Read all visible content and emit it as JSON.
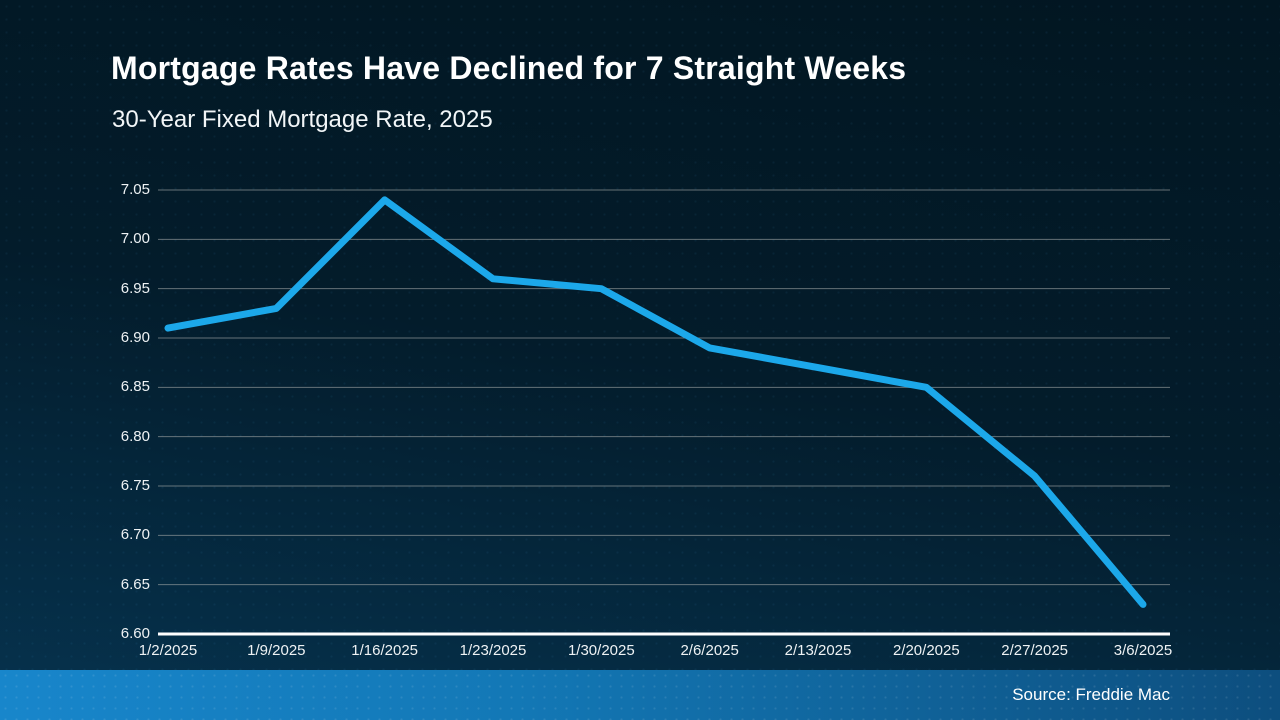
{
  "page": {
    "title": "Mortgage Rates Have Declined for 7 Straight Weeks",
    "subtitle": "30-Year Fixed Mortgage Rate, 2025",
    "source": "Source: Freddie Mac"
  },
  "colors": {
    "background_top": "#021621",
    "background_bottom": "#06334f",
    "line": "#1ca8ea",
    "gridline": "#9aa0a0",
    "axis_line": "#ffffff",
    "text": "#ffffff",
    "footer_left": "#1886cb",
    "footer_right": "#0d4e7e"
  },
  "chart_data": {
    "type": "line",
    "title": "Mortgage Rates Have Declined for 7 Straight Weeks",
    "subtitle": "30-Year Fixed Mortgage Rate, 2025",
    "series_name": "30-Year Fixed Mortgage Rate",
    "x": [
      "1/2/2025",
      "1/9/2025",
      "1/16/2025",
      "1/23/2025",
      "1/30/2025",
      "2/6/2025",
      "2/13/2025",
      "2/20/2025",
      "2/27/2025",
      "3/6/2025"
    ],
    "values": [
      6.91,
      6.93,
      7.04,
      6.96,
      6.95,
      6.89,
      6.87,
      6.85,
      6.76,
      6.63
    ],
    "ylim": [
      6.6,
      7.05
    ],
    "ytick_step": 0.05,
    "yticks": [
      "7.05",
      "7.00",
      "6.95",
      "6.90",
      "6.85",
      "6.80",
      "6.75",
      "6.70",
      "6.65",
      "6.60"
    ],
    "grid": true,
    "legend": false,
    "source": "Source: Freddie Mac"
  }
}
